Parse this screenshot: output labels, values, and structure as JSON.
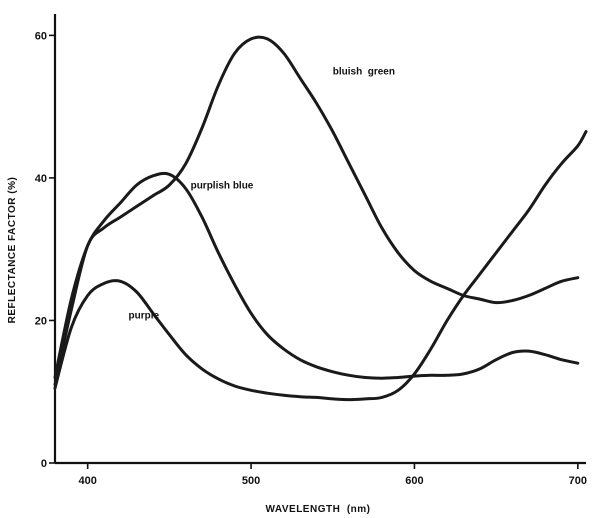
{
  "chart_data": {
    "type": "line",
    "title": "",
    "xlabel": "WAVELENGTH  (nm)",
    "ylabel": "REFLECTANCE FACTOR (%)",
    "xlim": [
      380,
      705
    ],
    "ylim": [
      0,
      63
    ],
    "xticks": [
      400,
      500,
      600,
      700
    ],
    "yticks": [
      0,
      20,
      40,
      60
    ],
    "grid": false,
    "series": [
      {
        "name": "bluish  green",
        "x": [
          380,
          390,
          400,
          410,
          420,
          430,
          440,
          450,
          460,
          470,
          480,
          490,
          500,
          510,
          520,
          530,
          540,
          550,
          560,
          570,
          580,
          590,
          600,
          610,
          620,
          630,
          640,
          650,
          660,
          670,
          680,
          690,
          700
        ],
        "y": [
          11,
          21.5,
          30.5,
          33,
          34.5,
          36,
          37.5,
          39,
          42,
          47,
          53,
          57.5,
          59.5,
          59.5,
          57.5,
          54,
          50.5,
          46.5,
          42,
          37.5,
          33,
          29.5,
          27,
          25.5,
          24.5,
          23.5,
          23,
          22.5,
          22.8,
          23.5,
          24.5,
          25.5,
          26
        ]
      },
      {
        "name": "purplish blue",
        "x": [
          380,
          390,
          400,
          410,
          420,
          430,
          440,
          450,
          460,
          470,
          480,
          490,
          500,
          510,
          520,
          530,
          540,
          550,
          560,
          570,
          580,
          590,
          600,
          610,
          620,
          630,
          640,
          650,
          660,
          670,
          680,
          690,
          700
        ],
        "y": [
          12,
          23,
          30.5,
          34,
          36.5,
          39,
          40.3,
          40.5,
          38.5,
          34.5,
          29.5,
          25,
          21,
          18,
          16,
          14.5,
          13.5,
          12.8,
          12.3,
          12,
          11.9,
          12,
          12.2,
          12.3,
          12.3,
          12.5,
          13.2,
          14.5,
          15.5,
          15.7,
          15.2,
          14.5,
          14
        ]
      },
      {
        "name": "purple",
        "x": [
          380,
          390,
          400,
          410,
          420,
          430,
          440,
          450,
          460,
          470,
          480,
          490,
          500,
          510,
          520,
          530,
          540,
          550,
          560,
          570,
          580,
          590,
          600,
          610,
          620,
          630,
          640,
          650,
          660,
          670,
          680,
          690,
          700,
          705
        ],
        "y": [
          10.5,
          19,
          23.5,
          25.2,
          25.5,
          24,
          21,
          18,
          15.2,
          13.2,
          11.8,
          10.8,
          10.2,
          9.8,
          9.5,
          9.3,
          9.2,
          9,
          8.9,
          9,
          9.2,
          10.2,
          12.5,
          16,
          20,
          23.5,
          26.5,
          29.5,
          32.5,
          35.5,
          39,
          42,
          44.5,
          46.5
        ]
      }
    ],
    "annotations": [
      {
        "text": "bluish  green",
        "x": 550,
        "y": 54.5
      },
      {
        "text": "purplish blue",
        "x": 463,
        "y": 38.5
      },
      {
        "text": "purple",
        "x": 425,
        "y": 20.3
      }
    ]
  }
}
